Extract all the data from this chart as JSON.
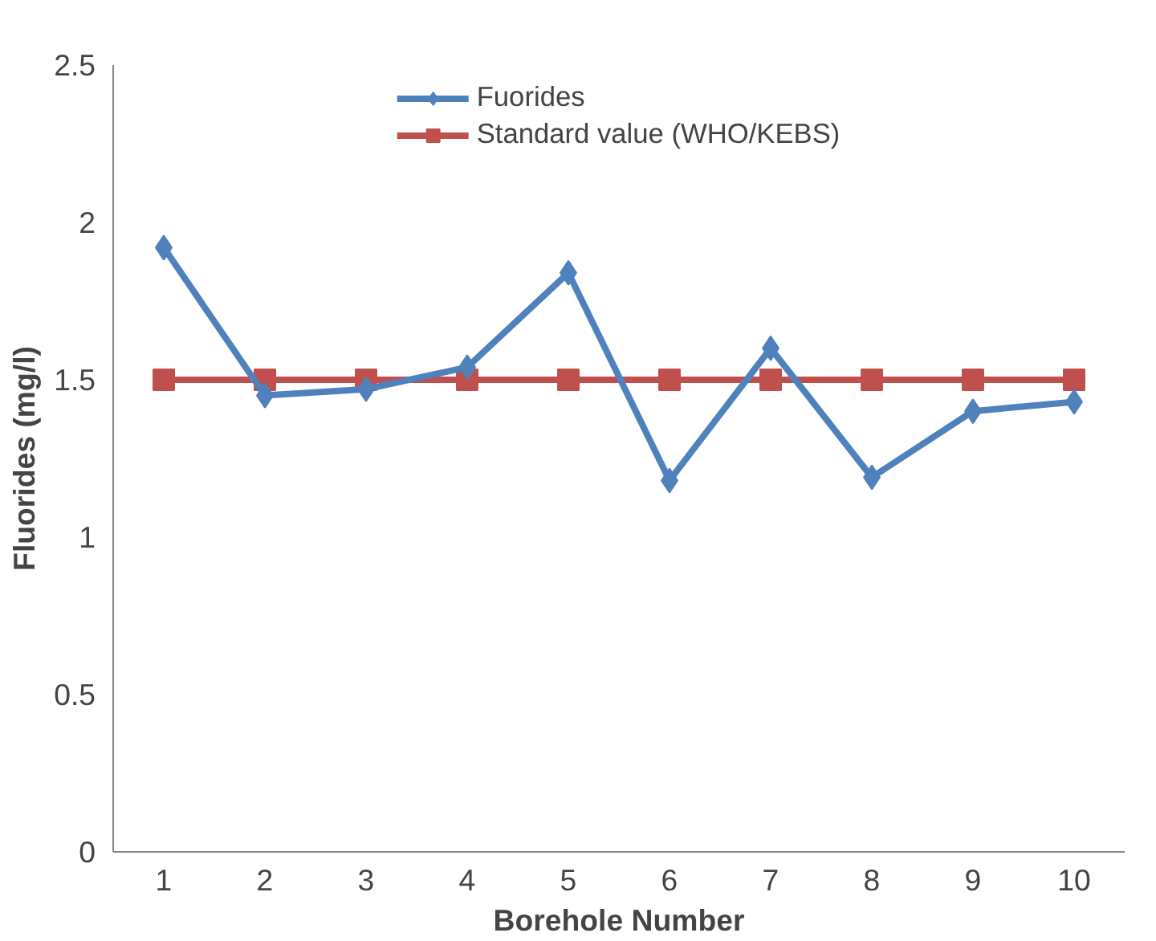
{
  "chart_data": {
    "type": "line",
    "xlabel": "Borehole Number",
    "ylabel": "Fluorides (mg/l)",
    "categories": [
      "1",
      "2",
      "3",
      "4",
      "5",
      "6",
      "7",
      "8",
      "9",
      "10"
    ],
    "series": [
      {
        "name": "Fuorides",
        "color": "#4f81bd",
        "marker": "diamond",
        "values": [
          1.92,
          1.45,
          1.47,
          1.54,
          1.84,
          1.18,
          1.6,
          1.19,
          1.4,
          1.43
        ]
      },
      {
        "name": "Standard value (WHO/KEBS)",
        "color": "#c0504d",
        "marker": "square",
        "values": [
          1.5,
          1.5,
          1.5,
          1.5,
          1.5,
          1.5,
          1.5,
          1.5,
          1.5,
          1.5
        ]
      }
    ],
    "ylim": [
      0,
      2.5
    ],
    "yticks": [
      0,
      0.5,
      1,
      1.5,
      2,
      2.5
    ],
    "grid": false,
    "legend": "top"
  }
}
